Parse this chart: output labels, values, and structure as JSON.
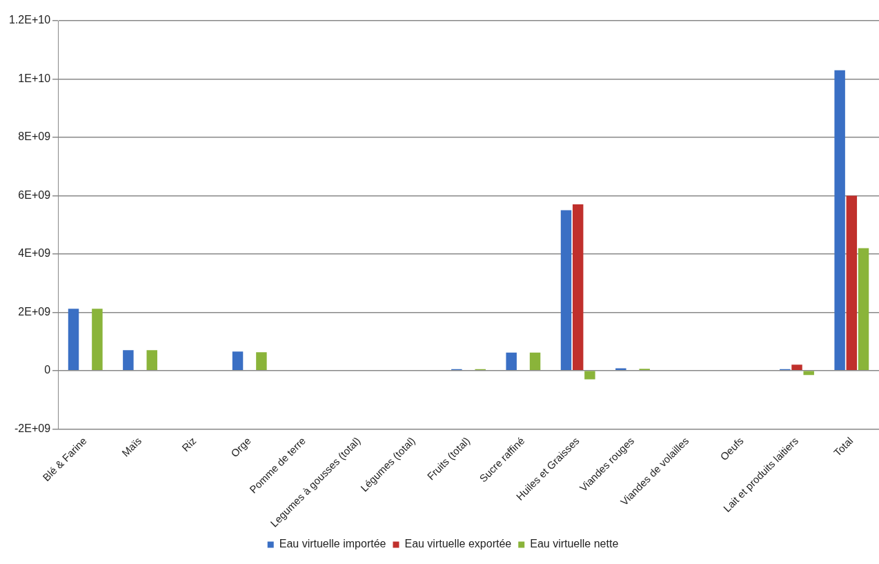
{
  "chart_data": {
    "type": "bar",
    "categories": [
      "Blé & Farine",
      "Maïs",
      "Riz",
      "Orge",
      "Pomme de terre",
      "Legumes à gousses (total)",
      "Légumes (total)",
      "Fruits (total)",
      "Sucre raffiné",
      "Huiles et Graisses",
      "Viandes rouges",
      "Viandes de volailles",
      "Oeufs",
      "Lait et produits laitiers",
      "Total"
    ],
    "series": [
      {
        "name": "Eau virtuelle importée",
        "color": "#3a6fc4",
        "values": [
          2120000000,
          700000000,
          0,
          650000000,
          0,
          0,
          0,
          50000000,
          620000000,
          5500000000,
          80000000,
          0,
          0,
          50000000,
          10300000000
        ]
      },
      {
        "name": "Eau virtuelle exportée",
        "color": "#c0302c",
        "values": [
          0,
          0,
          0,
          0,
          0,
          0,
          0,
          20000000,
          0,
          5700000000,
          0,
          0,
          0,
          200000000,
          6000000000
        ]
      },
      {
        "name": "Eau virtuelle nette",
        "color": "#8ab43a",
        "values": [
          2120000000,
          700000000,
          0,
          630000000,
          0,
          0,
          0,
          50000000,
          620000000,
          -300000000,
          60000000,
          0,
          0,
          -150000000,
          4200000000
        ]
      }
    ],
    "ylim": [
      -2000000000,
      12000000000
    ],
    "yticks": [
      {
        "value": -2000000000,
        "label": "-2E+09"
      },
      0,
      {
        "value": 2000000000,
        "label": "2E+09"
      },
      {
        "value": 4000000000,
        "label": "4E+09"
      },
      {
        "value": 6000000000,
        "label": "6E+09"
      },
      {
        "value": 8000000000,
        "label": "8E+09"
      },
      {
        "value": 10000000000,
        "label": "1E+10"
      },
      {
        "value": 12000000000,
        "label": "1.2E+10"
      }
    ],
    "grid": "y",
    "legend": "bottom"
  }
}
